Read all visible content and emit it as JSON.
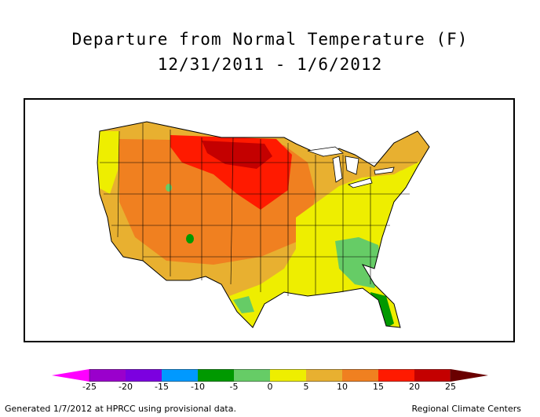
{
  "title": {
    "line1": "Departure from Normal Temperature (F)",
    "line2": "12/31/2011 - 1/6/2012"
  },
  "colorbar": {
    "tick_labels": [
      "-25",
      "-20",
      "-15",
      "-10",
      "-5",
      "0",
      "5",
      "10",
      "15",
      "20",
      "25"
    ],
    "colors": {
      "below_min": "#ff00ff",
      "bins": [
        "#9a00cc",
        "#7c00e0",
        "#0099ff",
        "#009900",
        "#66cc66",
        "#eeee00",
        "#e8b030",
        "#f08020",
        "#ff1a00",
        "#c40000"
      ],
      "above_max": "#6a0000"
    }
  },
  "map": {
    "region": "Contiguous United States",
    "colors": {
      "background": "#ffffff",
      "border": "#000000",
      "state_lines": "#000000"
    }
  },
  "footer": {
    "left": "Generated 1/7/2012 at HPRCC using provisional data.",
    "right": "Regional Climate Centers"
  }
}
